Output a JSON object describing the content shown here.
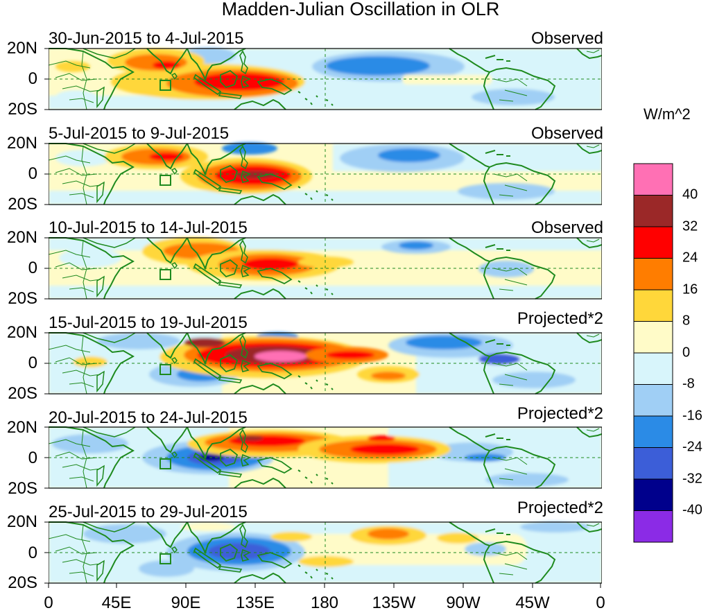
{
  "title": "Madden-Julian Oscillation in OLR",
  "panels": [
    {
      "dates": "30-Jun-2015 to 4-Jul-2015",
      "type": "Observed"
    },
    {
      "dates": "5-Jul-2015 to 9-Jul-2015",
      "type": "Observed"
    },
    {
      "dates": "10-Jul-2015 to 14-Jul-2015",
      "type": "Observed"
    },
    {
      "dates": "15-Jul-2015 to 19-Jul-2015",
      "type": "Projected*2"
    },
    {
      "dates": "20-Jul-2015 to 24-Jul-2015",
      "type": "Projected*2"
    },
    {
      "dates": "25-Jul-2015 to 29-Jul-2015",
      "type": "Projected*2"
    }
  ],
  "lat_labels": [
    "20N",
    "0",
    "20S"
  ],
  "lon_labels": [
    "0",
    "45E",
    "90E",
    "135E",
    "180",
    "135W",
    "90W",
    "45W",
    "0"
  ],
  "colorbar": {
    "units": "W/m^2",
    "labels": [
      "40",
      "32",
      "24",
      "16",
      "8",
      "0",
      "-8",
      "-16",
      "-24",
      "-32",
      "-40"
    ],
    "colors": [
      "#ff70b4",
      "#9b2828",
      "#ff0000",
      "#ff7d00",
      "#ffd73a",
      "#fffbc8",
      "#d8f5fb",
      "#a0cff5",
      "#2b8be6",
      "#3c5ed8",
      "#00008c",
      "#8b2be6"
    ]
  },
  "map_colors": {
    "land": "#1e8a1e",
    "background": "#fffbc8"
  }
}
